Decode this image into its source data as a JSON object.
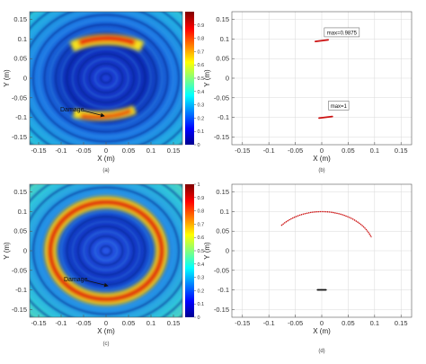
{
  "chart_data": [
    {
      "panel": "(a)",
      "type": "heatmap",
      "xlabel": "X (m)",
      "ylabel": "Y (m)",
      "xlim": [
        -0.17,
        0.17
      ],
      "ylim": [
        -0.17,
        0.17
      ],
      "xticks": [
        -0.15,
        -0.1,
        -0.05,
        0,
        0.05,
        0.1,
        0.15
      ],
      "yticks": [
        0.15,
        0.1,
        0.05,
        0,
        -0.05,
        -0.1,
        -0.15
      ],
      "xtick_labels": [
        "-0.15",
        "-0.1",
        "-0.05",
        "0",
        "0.05",
        "0.1",
        "0.15"
      ],
      "ytick_labels": [
        "0.15",
        "0.1",
        "0.05",
        "0",
        "-0.05",
        "-0.1",
        "-0.15"
      ],
      "colorbar": {
        "min": 0,
        "max": 1,
        "ticks": [
          0,
          0.1,
          0.2,
          0.3,
          0.4,
          0.5,
          0.6,
          0.7,
          0.8,
          0.9
        ]
      },
      "annotations": [
        {
          "text": "Damage",
          "point": [
            0.0,
            -0.09
          ]
        }
      ],
      "highlights": [
        {
          "x": 0.0,
          "y": 0.095,
          "extent_deg": [
            30,
            150
          ],
          "level": 1.0
        },
        {
          "x": 0.0,
          "y": -0.1,
          "extent_deg": [
            235,
            320
          ],
          "level": 0.95
        }
      ]
    },
    {
      "panel": "(b)",
      "type": "scatter",
      "xlabel": "X (m)",
      "ylabel": "Y (m)",
      "xlim": [
        -0.17,
        0.17
      ],
      "ylim": [
        -0.17,
        0.17
      ],
      "grid": true,
      "xticks": [
        -0.15,
        -0.1,
        -0.05,
        0,
        0.05,
        0.1,
        0.15
      ],
      "yticks": [
        0.15,
        0.1,
        0.05,
        0,
        -0.05,
        -0.1,
        -0.15
      ],
      "xtick_labels": [
        "-0.15",
        "-0.1",
        "-0.05",
        "0",
        "0.05",
        "0.1",
        "0.15"
      ],
      "ytick_labels": [
        "0.15",
        "0.1",
        "0.05",
        "0",
        "-0.05",
        "-0.1",
        "-0.15"
      ],
      "segments": [
        {
          "x": [
            -0.012,
            0.012
          ],
          "y": [
            0.094,
            0.098
          ],
          "color": "#cc1111"
        },
        {
          "x": [
            -0.005,
            0.02
          ],
          "y": [
            -0.102,
            -0.098
          ],
          "color": "#cc1111"
        }
      ],
      "labels": [
        {
          "text": "max=0.9875",
          "x": 0.038,
          "y": 0.115
        },
        {
          "text": "max=1",
          "x": 0.032,
          "y": -0.072
        }
      ]
    },
    {
      "panel": "(c)",
      "type": "heatmap",
      "xlabel": "X (m)",
      "ylabel": "Y (m)",
      "xlim": [
        -0.17,
        0.17
      ],
      "ylim": [
        -0.17,
        0.17
      ],
      "xticks": [
        -0.15,
        -0.1,
        -0.05,
        0,
        0.05,
        0.1,
        0.15
      ],
      "yticks": [
        0.15,
        0.1,
        0.05,
        0,
        -0.05,
        -0.1,
        -0.15
      ],
      "xtick_labels": [
        "-0.15",
        "-0.1",
        "-0.05",
        "0",
        "0.05",
        "0.1",
        "0.15"
      ],
      "ytick_labels": [
        "0.15",
        "0.1",
        "0.05",
        "0",
        "-0.05",
        "-0.1",
        "-0.15"
      ],
      "colorbar": {
        "min": 0,
        "max": 1,
        "ticks": [
          0,
          0.1,
          0.2,
          0.3,
          0.4,
          0.5,
          0.6,
          0.7,
          0.8,
          0.9,
          1
        ]
      },
      "annotations": [
        {
          "text": "Damage",
          "point": [
            0.0,
            -0.1
          ]
        }
      ],
      "highlights": [
        {
          "x": 0.0,
          "y": 0.0,
          "ring_radius": 0.1,
          "level": 1.0
        }
      ]
    },
    {
      "panel": "(d)",
      "type": "scatter",
      "xlabel": "X (m)",
      "ylabel": "Y (m)",
      "xlim": [
        -0.17,
        0.17
      ],
      "ylim": [
        -0.17,
        0.17
      ],
      "grid": true,
      "xticks": [
        -0.15,
        -0.1,
        -0.05,
        0,
        0.05,
        0.1,
        0.15
      ],
      "yticks": [
        0.15,
        0.1,
        0.05,
        0,
        -0.05,
        -0.1,
        -0.15
      ],
      "xtick_labels": [
        "-0.15",
        "-0.1",
        "-0.05",
        "0",
        "0.05",
        "0.1",
        "0.15"
      ],
      "ytick_labels": [
        "0.15",
        "0.1",
        "0.05",
        "0",
        "-0.05",
        "-0.1",
        "-0.15"
      ],
      "arc": {
        "center": [
          0,
          0
        ],
        "radius": 0.1,
        "start_deg": 140,
        "end_deg": 20,
        "color": "#cc1111"
      },
      "segments": [
        {
          "x": [
            -0.008,
            0.008
          ],
          "y": [
            -0.1,
            -0.1
          ],
          "color": "#111111"
        }
      ]
    }
  ]
}
